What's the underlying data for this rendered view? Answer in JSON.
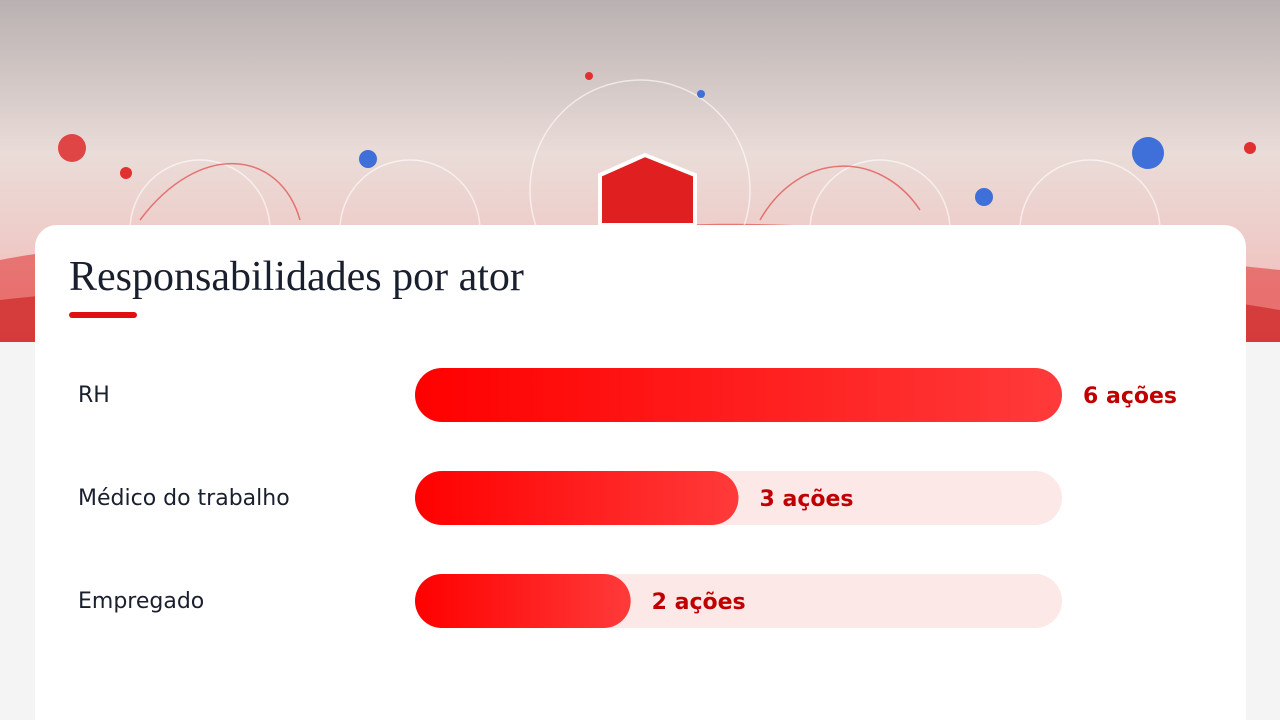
{
  "chart_data": {
    "type": "bar",
    "orientation": "horizontal",
    "title": "Responsabilidades por ator",
    "categories": [
      "RH",
      "Médico do trabalho",
      "Empregado"
    ],
    "values": [
      6,
      3,
      2
    ],
    "value_labels": [
      "6 ações",
      "3 ações",
      "2 ações"
    ],
    "color": "#ff1a1a"
  }
}
